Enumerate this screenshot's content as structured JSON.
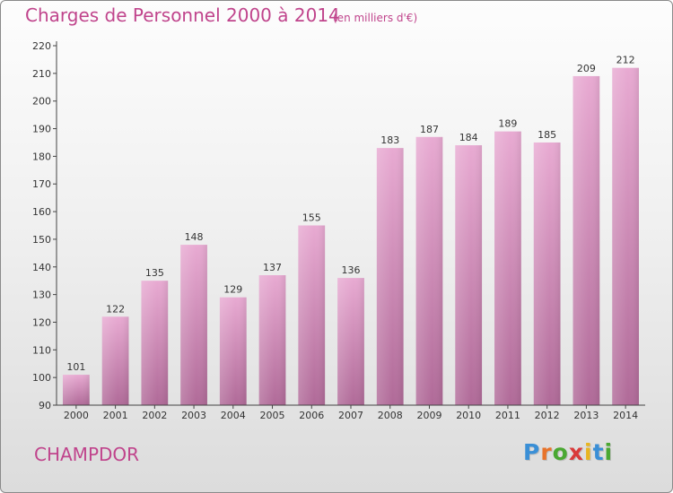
{
  "title": "Charges de Personnel 2000 à 2014",
  "subtitle": "(en milliers d'€)",
  "commune": "CHAMPDOR",
  "logo": {
    "letters": [
      "P",
      "r",
      "o",
      "x",
      "i",
      "t",
      "i"
    ],
    "colors": [
      "#3a8fd6",
      "#e8732a",
      "#4aa832",
      "#d93a3a",
      "#e8b520",
      "#3a8fd6",
      "#4aa832"
    ]
  },
  "colors": {
    "title": "#c0448c",
    "bar_top": "#e8aad2",
    "bar_bottom": "#b06a98",
    "axis": "#444444"
  },
  "chart_data": {
    "type": "bar",
    "categories": [
      "2000",
      "2001",
      "2002",
      "2003",
      "2004",
      "2005",
      "2006",
      "2007",
      "2008",
      "2009",
      "2010",
      "2011",
      "2012",
      "2013",
      "2014"
    ],
    "values": [
      101,
      122,
      135,
      148,
      129,
      137,
      155,
      136,
      183,
      187,
      184,
      189,
      185,
      209,
      212
    ],
    "value_labels": [
      "101",
      "122",
      "135",
      "148",
      "129",
      "137",
      "155",
      "136",
      "183",
      "187",
      "184",
      "189",
      "185",
      "209",
      "212"
    ],
    "yticks": [
      "90",
      "100",
      "110",
      "120",
      "130",
      "140",
      "150",
      "160",
      "170",
      "180",
      "190",
      "200",
      "210",
      "220"
    ],
    "ylim": [
      90,
      220
    ],
    "grid": false,
    "legend": "none"
  }
}
